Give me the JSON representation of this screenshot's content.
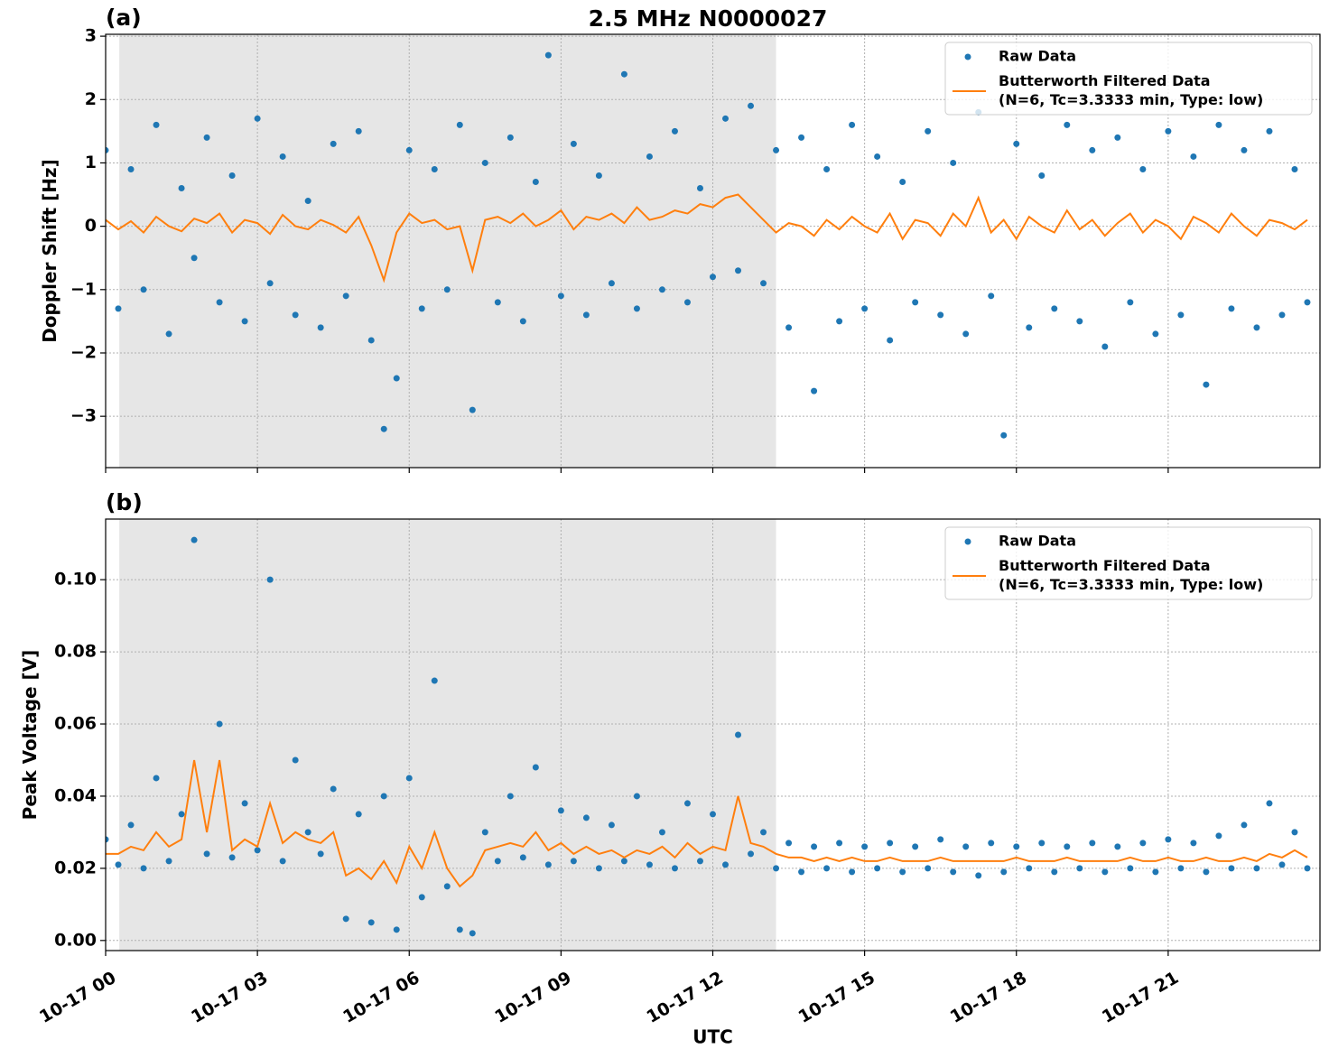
{
  "chart_data": [
    {
      "type": "scatter-line",
      "title": "2.5 MHz N0000027",
      "panel_label": "(a)",
      "ylabel": "Doppler Shift [Hz]",
      "xlim": [
        0,
        24
      ],
      "xticks": [
        0,
        3,
        6,
        9,
        12,
        15,
        18,
        21
      ],
      "ylim": [
        -3.81,
        3.03
      ],
      "yticks": [
        {
          "value": -3,
          "label": "−3"
        },
        {
          "value": -2,
          "label": "−2"
        },
        {
          "value": -1,
          "label": "−1"
        },
        0,
        1,
        2,
        3
      ],
      "grid": true,
      "legend": "upper right",
      "shaded_span": [
        0.27,
        13.25
      ],
      "shaded_color": "#e6e6e6",
      "x": [
        0,
        0.25,
        0.5,
        0.75,
        1,
        1.25,
        1.5,
        1.75,
        2,
        2.25,
        2.5,
        2.75,
        3,
        3.25,
        3.5,
        3.75,
        4,
        4.25,
        4.5,
        4.75,
        5,
        5.25,
        5.5,
        5.75,
        6,
        6.25,
        6.5,
        6.75,
        7,
        7.25,
        7.5,
        7.75,
        8,
        8.25,
        8.5,
        8.75,
        9,
        9.25,
        9.5,
        9.75,
        10,
        10.25,
        10.5,
        10.75,
        11,
        11.25,
        11.5,
        11.75,
        12,
        12.25,
        12.5,
        12.75,
        13,
        13.25,
        13.5,
        13.75,
        14,
        14.25,
        14.5,
        14.75,
        15,
        15.25,
        15.5,
        15.75,
        16,
        16.25,
        16.5,
        16.75,
        17,
        17.25,
        17.5,
        17.75,
        18,
        18.25,
        18.5,
        18.75,
        19,
        19.25,
        19.5,
        19.75,
        20,
        20.25,
        20.5,
        20.75,
        21,
        21.25,
        21.5,
        21.75,
        22,
        22.25,
        22.5,
        22.75,
        23,
        23.25,
        23.5,
        23.75
      ],
      "series": [
        {
          "name": "Raw Data",
          "color": "#1f77b4",
          "values": [
            1.2,
            -1.3,
            0.9,
            -1.0,
            1.6,
            -1.7,
            0.6,
            -0.5,
            1.4,
            -1.2,
            0.8,
            -1.5,
            1.7,
            -0.9,
            1.1,
            -1.4,
            0.4,
            -1.6,
            1.3,
            -1.1,
            1.5,
            -1.8,
            -3.2,
            -2.4,
            1.2,
            -1.3,
            0.9,
            -1.0,
            1.6,
            -2.9,
            1.0,
            -1.2,
            1.4,
            -1.5,
            0.7,
            2.7,
            -1.1,
            1.3,
            -1.4,
            0.8,
            -0.9,
            2.4,
            -1.3,
            1.1,
            -1.0,
            1.5,
            -1.2,
            0.6,
            -0.8,
            1.7,
            -0.7,
            1.9,
            -0.9,
            1.2,
            -1.6,
            1.4,
            -2.6,
            0.9,
            -1.5,
            1.6,
            -1.3,
            1.1,
            -1.8,
            0.7,
            -1.2,
            1.5,
            -1.4,
            1.0,
            -1.7,
            1.8,
            -1.1,
            -3.3,
            1.3,
            -1.6,
            0.8,
            -1.3,
            1.6,
            -1.5,
            1.2,
            -1.9,
            1.4,
            -1.2,
            0.9,
            -1.7,
            1.5,
            -1.4,
            1.1,
            -2.5,
            1.6,
            -1.3,
            1.2,
            -1.6,
            1.5,
            -1.4,
            0.9,
            -1.2
          ]
        },
        {
          "name": "Butterworth Filtered Data\n(N=6, Tc=3.3333 min, Type: low)",
          "color": "#ff7f0e",
          "values": [
            0.1,
            -0.05,
            0.08,
            -0.1,
            0.15,
            0.0,
            -0.08,
            0.12,
            0.05,
            0.2,
            -0.1,
            0.1,
            0.05,
            -0.12,
            0.18,
            0.0,
            -0.05,
            0.1,
            0.02,
            -0.1,
            0.15,
            -0.3,
            -0.85,
            -0.1,
            0.2,
            0.05,
            0.1,
            -0.05,
            0.0,
            -0.7,
            0.1,
            0.15,
            0.05,
            0.2,
            0.0,
            0.1,
            0.25,
            -0.05,
            0.15,
            0.1,
            0.2,
            0.05,
            0.3,
            0.1,
            0.15,
            0.25,
            0.2,
            0.35,
            0.3,
            0.45,
            0.5,
            0.3,
            0.1,
            -0.1,
            0.05,
            0.0,
            -0.15,
            0.1,
            -0.05,
            0.15,
            0.0,
            -0.1,
            0.2,
            -0.2,
            0.1,
            0.05,
            -0.15,
            0.2,
            0.0,
            0.45,
            -0.1,
            0.1,
            -0.2,
            0.15,
            0.0,
            -0.1,
            0.25,
            -0.05,
            0.1,
            -0.15,
            0.05,
            0.2,
            -0.1,
            0.1,
            0.0,
            -0.2,
            0.15,
            0.05,
            -0.1,
            0.2,
            0.0,
            -0.15,
            0.1,
            0.05,
            -0.05,
            0.1
          ]
        }
      ]
    },
    {
      "type": "scatter-line",
      "panel_label": "(b)",
      "ylabel": "Peak Voltage [V]",
      "xlabel": "UTC",
      "xlim": [
        0,
        24
      ],
      "xticks": [
        {
          "value": 0,
          "label": "10-17 00"
        },
        {
          "value": 3,
          "label": "10-17 03"
        },
        {
          "value": 6,
          "label": "10-17 06"
        },
        {
          "value": 9,
          "label": "10-17 09"
        },
        {
          "value": 12,
          "label": "10-17 12"
        },
        {
          "value": 15,
          "label": "10-17 15"
        },
        {
          "value": 18,
          "label": "10-17 18"
        },
        {
          "value": 21,
          "label": "10-17 21"
        }
      ],
      "ylim": [
        -0.0028,
        0.1168
      ],
      "yticks": [
        {
          "value": 0,
          "label": "0.00"
        },
        {
          "value": 0.02,
          "label": "0.02"
        },
        {
          "value": 0.04,
          "label": "0.04"
        },
        {
          "value": 0.06,
          "label": "0.06"
        },
        {
          "value": 0.08,
          "label": "0.08"
        },
        {
          "value": 0.1,
          "label": "0.10"
        }
      ],
      "grid": true,
      "legend": "upper right",
      "shaded_span": [
        0.27,
        13.25
      ],
      "shaded_color": "#e6e6e6",
      "x": [
        0,
        0.25,
        0.5,
        0.75,
        1,
        1.25,
        1.5,
        1.75,
        2,
        2.25,
        2.5,
        2.75,
        3,
        3.25,
        3.5,
        3.75,
        4,
        4.25,
        4.5,
        4.75,
        5,
        5.25,
        5.5,
        5.75,
        6,
        6.25,
        6.5,
        6.75,
        7,
        7.25,
        7.5,
        7.75,
        8,
        8.25,
        8.5,
        8.75,
        9,
        9.25,
        9.5,
        9.75,
        10,
        10.25,
        10.5,
        10.75,
        11,
        11.25,
        11.5,
        11.75,
        12,
        12.25,
        12.5,
        12.75,
        13,
        13.25,
        13.5,
        13.75,
        14,
        14.25,
        14.5,
        14.75,
        15,
        15.25,
        15.5,
        15.75,
        16,
        16.25,
        16.5,
        16.75,
        17,
        17.25,
        17.5,
        17.75,
        18,
        18.25,
        18.5,
        18.75,
        19,
        19.25,
        19.5,
        19.75,
        20,
        20.25,
        20.5,
        20.75,
        21,
        21.25,
        21.5,
        21.75,
        22,
        22.25,
        22.5,
        22.75,
        23,
        23.25,
        23.5,
        23.75
      ],
      "series": [
        {
          "name": "Raw Data",
          "color": "#1f77b4",
          "values": [
            0.028,
            0.021,
            0.032,
            0.02,
            0.045,
            0.022,
            0.035,
            0.111,
            0.024,
            0.06,
            0.023,
            0.038,
            0.025,
            0.1,
            0.022,
            0.05,
            0.03,
            0.024,
            0.042,
            0.006,
            0.035,
            0.005,
            0.04,
            0.003,
            0.045,
            0.012,
            0.072,
            0.015,
            0.003,
            0.002,
            0.03,
            0.022,
            0.04,
            0.023,
            0.048,
            0.021,
            0.036,
            0.022,
            0.034,
            0.02,
            0.032,
            0.022,
            0.04,
            0.021,
            0.03,
            0.02,
            0.038,
            0.022,
            0.035,
            0.021,
            0.057,
            0.024,
            0.03,
            0.02,
            0.027,
            0.019,
            0.026,
            0.02,
            0.027,
            0.019,
            0.026,
            0.02,
            0.027,
            0.019,
            0.026,
            0.02,
            0.028,
            0.019,
            0.026,
            0.018,
            0.027,
            0.019,
            0.026,
            0.02,
            0.027,
            0.019,
            0.026,
            0.02,
            0.027,
            0.019,
            0.026,
            0.02,
            0.027,
            0.019,
            0.028,
            0.02,
            0.027,
            0.019,
            0.029,
            0.02,
            0.032,
            0.02,
            0.038,
            0.021,
            0.03,
            0.02
          ]
        },
        {
          "name": "Butterworth Filtered Data\n(N=6, Tc=3.3333 min, Type: low)",
          "color": "#ff7f0e",
          "values": [
            0.024,
            0.024,
            0.026,
            0.025,
            0.03,
            0.026,
            0.028,
            0.05,
            0.03,
            0.05,
            0.025,
            0.028,
            0.026,
            0.038,
            0.027,
            0.03,
            0.028,
            0.027,
            0.03,
            0.018,
            0.02,
            0.017,
            0.022,
            0.016,
            0.026,
            0.02,
            0.03,
            0.02,
            0.015,
            0.018,
            0.025,
            0.026,
            0.027,
            0.026,
            0.03,
            0.025,
            0.027,
            0.024,
            0.026,
            0.024,
            0.025,
            0.023,
            0.025,
            0.024,
            0.026,
            0.023,
            0.027,
            0.024,
            0.026,
            0.025,
            0.04,
            0.027,
            0.026,
            0.024,
            0.023,
            0.023,
            0.022,
            0.023,
            0.022,
            0.023,
            0.022,
            0.022,
            0.023,
            0.022,
            0.022,
            0.022,
            0.023,
            0.022,
            0.022,
            0.022,
            0.022,
            0.022,
            0.023,
            0.022,
            0.022,
            0.022,
            0.023,
            0.022,
            0.022,
            0.022,
            0.022,
            0.023,
            0.022,
            0.022,
            0.023,
            0.022,
            0.022,
            0.023,
            0.022,
            0.022,
            0.023,
            0.022,
            0.024,
            0.023,
            0.025,
            0.023
          ]
        }
      ]
    }
  ]
}
